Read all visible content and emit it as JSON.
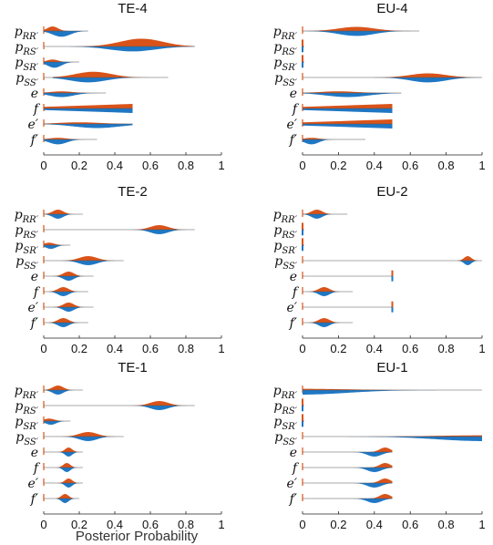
{
  "colors": {
    "orange": "#d95319",
    "blue": "#1f77c4",
    "axis": "#222222"
  },
  "x_axis_label": "Posterior Probability",
  "xticks": [
    0,
    0.2,
    0.4,
    0.6,
    0.8,
    1
  ],
  "rows": [
    {
      "base": "p",
      "sub": "RR′"
    },
    {
      "base": "p",
      "sub": "RS′"
    },
    {
      "base": "p",
      "sub": "SR′"
    },
    {
      "base": "p",
      "sub": "SS′"
    },
    {
      "base": "e",
      "sub": ""
    },
    {
      "base": "f",
      "sub": ""
    },
    {
      "base": "e′",
      "sub": ""
    },
    {
      "base": "f′",
      "sub": ""
    }
  ],
  "chart_data": [
    {
      "type": "violin",
      "title": "TE-4",
      "xlim": [
        0,
        1
      ],
      "series": [
        {
          "name": "",
          "color": "orange"
        },
        {
          "name": "",
          "color": "blue"
        }
      ],
      "distributions": [
        {
          "row": "p_RR'",
          "top": {
            "mode": 0.05,
            "sd": 0.03,
            "lo": 0.0,
            "hi": 0.2,
            "h": 0.55
          },
          "bottom": {
            "mode": 0.1,
            "sd": 0.05,
            "lo": 0.0,
            "hi": 0.25,
            "h": 0.7
          }
        },
        {
          "row": "p_RS'",
          "top": {
            "mode": 0.55,
            "sd": 0.12,
            "lo": 0.15,
            "hi": 0.85,
            "h": 0.95
          },
          "bottom": {
            "mode": 0.5,
            "sd": 0.13,
            "lo": 0.15,
            "hi": 0.85,
            "h": 0.6
          }
        },
        {
          "row": "p_SR'",
          "top": {
            "mode": 0.05,
            "sd": 0.03,
            "lo": 0.0,
            "hi": 0.2,
            "h": 0.3
          },
          "bottom": {
            "mode": 0.06,
            "sd": 0.04,
            "lo": 0.0,
            "hi": 0.2,
            "h": 0.7
          }
        },
        {
          "row": "p_SS'",
          "top": {
            "mode": 0.28,
            "sd": 0.1,
            "lo": 0.05,
            "hi": 0.7,
            "h": 0.7
          },
          "bottom": {
            "mode": 0.25,
            "sd": 0.1,
            "lo": 0.05,
            "hi": 0.65,
            "h": 0.6
          }
        },
        {
          "row": "e",
          "top": {
            "mode": 0.1,
            "sd": 0.06,
            "lo": 0.0,
            "hi": 0.35,
            "h": 0.2
          },
          "bottom": {
            "mode": 0.1,
            "sd": 0.07,
            "lo": 0.0,
            "hi": 0.35,
            "h": 0.5
          }
        },
        {
          "row": "f",
          "top": {
            "mode": 0.5,
            "sd": 0.01,
            "lo": 0.0,
            "hi": 0.5,
            "h": 0.55,
            "flat": true
          },
          "bottom": {
            "mode": 0.5,
            "sd": 0.01,
            "lo": 0.0,
            "hi": 0.5,
            "h": 0.55,
            "flat": true
          }
        },
        {
          "row": "e'",
          "top": {
            "mode": 0.2,
            "sd": 0.12,
            "lo": 0.0,
            "hi": 0.5,
            "h": 0.2
          },
          "bottom": {
            "mode": 0.3,
            "sd": 0.13,
            "lo": 0.0,
            "hi": 0.5,
            "h": 0.5
          }
        },
        {
          "row": "f'",
          "top": {
            "mode": 0.08,
            "sd": 0.05,
            "lo": 0.0,
            "hi": 0.3,
            "h": 0.2
          },
          "bottom": {
            "mode": 0.08,
            "sd": 0.05,
            "lo": 0.0,
            "hi": 0.3,
            "h": 0.6
          }
        }
      ]
    },
    {
      "type": "violin",
      "title": "EU-4",
      "xlim": [
        0,
        1
      ],
      "series": [
        {
          "name": "",
          "color": "orange"
        },
        {
          "name": "",
          "color": "blue"
        }
      ],
      "distributions": [
        {
          "row": "p_RR'",
          "top": {
            "mode": 0.3,
            "sd": 0.1,
            "lo": 0.0,
            "hi": 0.65,
            "h": 0.5
          },
          "bottom": {
            "mode": 0.3,
            "sd": 0.1,
            "lo": 0.0,
            "hi": 0.65,
            "h": 0.6
          }
        },
        {
          "row": "p_RS'",
          "top": {
            "mode": 0.0,
            "sd": 0.003,
            "lo": 0.0,
            "hi": 0.01,
            "h": 0.6,
            "spike": true
          },
          "bottom": {
            "mode": 0.0,
            "sd": 0.003,
            "lo": 0.0,
            "hi": 0.01,
            "h": 0.5,
            "spike": true
          }
        },
        {
          "row": "p_SR'",
          "top": {
            "mode": 0.0,
            "sd": 0.003,
            "lo": 0.0,
            "hi": 0.01,
            "h": 0.6,
            "spike": true
          },
          "bottom": {
            "mode": 0.0,
            "sd": 0.003,
            "lo": 0.0,
            "hi": 0.01,
            "h": 0.5,
            "spike": true
          }
        },
        {
          "row": "p_SS'",
          "top": {
            "mode": 0.7,
            "sd": 0.1,
            "lo": 0.35,
            "hi": 1.0,
            "h": 0.5
          },
          "bottom": {
            "mode": 0.7,
            "sd": 0.1,
            "lo": 0.35,
            "hi": 1.0,
            "h": 0.6
          }
        },
        {
          "row": "e",
          "top": {
            "mode": 0.2,
            "sd": 0.1,
            "lo": 0.0,
            "hi": 0.5,
            "h": 0.2
          },
          "bottom": {
            "mode": 0.25,
            "sd": 0.12,
            "lo": 0.0,
            "hi": 0.55,
            "h": 0.5
          }
        },
        {
          "row": "f",
          "top": {
            "mode": 0.5,
            "sd": 0.01,
            "lo": 0.0,
            "hi": 0.5,
            "h": 0.55,
            "flat": true
          },
          "bottom": {
            "mode": 0.5,
            "sd": 0.01,
            "lo": 0.0,
            "hi": 0.5,
            "h": 0.55,
            "flat": true
          }
        },
        {
          "row": "e'",
          "top": {
            "mode": 0.5,
            "sd": 0.01,
            "lo": 0.0,
            "hi": 0.5,
            "h": 0.55,
            "flat": true
          },
          "bottom": {
            "mode": 0.5,
            "sd": 0.01,
            "lo": 0.0,
            "hi": 0.5,
            "h": 0.55,
            "flat": true
          }
        },
        {
          "row": "f'",
          "top": {
            "mode": 0.05,
            "sd": 0.04,
            "lo": 0.0,
            "hi": 0.35,
            "h": 0.2
          },
          "bottom": {
            "mode": 0.05,
            "sd": 0.04,
            "lo": 0.0,
            "hi": 0.35,
            "h": 0.6
          }
        }
      ]
    },
    {
      "type": "violin",
      "title": "TE-2",
      "xlim": [
        0,
        1
      ],
      "series": [
        {
          "name": "",
          "color": "orange"
        },
        {
          "name": "",
          "color": "blue"
        }
      ],
      "distributions": [
        {
          "row": "p_RR'",
          "top": {
            "mode": 0.08,
            "sd": 0.03,
            "lo": 0.0,
            "hi": 0.22,
            "h": 0.55
          },
          "bottom": {
            "mode": 0.08,
            "sd": 0.03,
            "lo": 0.0,
            "hi": 0.22,
            "h": 0.55
          }
        },
        {
          "row": "p_RS'",
          "top": {
            "mode": 0.65,
            "sd": 0.05,
            "lo": 0.5,
            "hi": 0.85,
            "h": 0.55
          },
          "bottom": {
            "mode": 0.65,
            "sd": 0.05,
            "lo": 0.5,
            "hi": 0.85,
            "h": 0.55
          }
        },
        {
          "row": "p_SR'",
          "top": {
            "mode": 0.03,
            "sd": 0.03,
            "lo": 0.0,
            "hi": 0.15,
            "h": 0.3
          },
          "bottom": {
            "mode": 0.04,
            "sd": 0.03,
            "lo": 0.0,
            "hi": 0.15,
            "h": 0.45
          }
        },
        {
          "row": "p_SS'",
          "top": {
            "mode": 0.25,
            "sd": 0.05,
            "lo": 0.1,
            "hi": 0.45,
            "h": 0.55
          },
          "bottom": {
            "mode": 0.25,
            "sd": 0.05,
            "lo": 0.1,
            "hi": 0.45,
            "h": 0.55
          }
        },
        {
          "row": "e",
          "top": {
            "mode": 0.14,
            "sd": 0.03,
            "lo": 0.05,
            "hi": 0.28,
            "h": 0.55
          },
          "bottom": {
            "mode": 0.14,
            "sd": 0.03,
            "lo": 0.05,
            "hi": 0.28,
            "h": 0.55
          }
        },
        {
          "row": "f",
          "top": {
            "mode": 0.11,
            "sd": 0.03,
            "lo": 0.03,
            "hi": 0.25,
            "h": 0.55
          },
          "bottom": {
            "mode": 0.11,
            "sd": 0.03,
            "lo": 0.03,
            "hi": 0.25,
            "h": 0.55
          }
        },
        {
          "row": "e'",
          "top": {
            "mode": 0.14,
            "sd": 0.03,
            "lo": 0.05,
            "hi": 0.28,
            "h": 0.55
          },
          "bottom": {
            "mode": 0.14,
            "sd": 0.03,
            "lo": 0.05,
            "hi": 0.28,
            "h": 0.55
          }
        },
        {
          "row": "f'",
          "top": {
            "mode": 0.11,
            "sd": 0.03,
            "lo": 0.03,
            "hi": 0.25,
            "h": 0.55
          },
          "bottom": {
            "mode": 0.11,
            "sd": 0.03,
            "lo": 0.03,
            "hi": 0.25,
            "h": 0.55
          }
        }
      ]
    },
    {
      "type": "violin",
      "title": "EU-2",
      "xlim": [
        0,
        1
      ],
      "series": [
        {
          "name": "",
          "color": "orange"
        },
        {
          "name": "",
          "color": "blue"
        }
      ],
      "distributions": [
        {
          "row": "p_RR'",
          "top": {
            "mode": 0.08,
            "sd": 0.03,
            "lo": 0.0,
            "hi": 0.25,
            "h": 0.55
          },
          "bottom": {
            "mode": 0.08,
            "sd": 0.03,
            "lo": 0.0,
            "hi": 0.25,
            "h": 0.55
          }
        },
        {
          "row": "p_RS'",
          "top": {
            "mode": 0.0,
            "sd": 0.003,
            "lo": 0.0,
            "hi": 0.01,
            "h": 0.6,
            "spike": true
          },
          "bottom": {
            "mode": 0.0,
            "sd": 0.003,
            "lo": 0.0,
            "hi": 0.01,
            "h": 0.5,
            "spike": true
          }
        },
        {
          "row": "p_SR'",
          "top": {
            "mode": 0.0,
            "sd": 0.003,
            "lo": 0.0,
            "hi": 0.01,
            "h": 0.6,
            "spike": true
          },
          "bottom": {
            "mode": 0.0,
            "sd": 0.003,
            "lo": 0.0,
            "hi": 0.01,
            "h": 0.5,
            "spike": true
          }
        },
        {
          "row": "p_SS'",
          "top": {
            "mode": 0.92,
            "sd": 0.02,
            "lo": 0.8,
            "hi": 1.0,
            "h": 0.55
          },
          "bottom": {
            "mode": 0.92,
            "sd": 0.02,
            "lo": 0.8,
            "hi": 1.0,
            "h": 0.55
          }
        },
        {
          "row": "e",
          "top": {
            "mode": 0.5,
            "sd": 0.003,
            "lo": 0.49,
            "hi": 0.5,
            "h": 0.5,
            "spike": true
          },
          "bottom": {
            "mode": 0.5,
            "sd": 0.003,
            "lo": 0.49,
            "hi": 0.5,
            "h": 0.45,
            "spike": true
          }
        },
        {
          "row": "f",
          "top": {
            "mode": 0.12,
            "sd": 0.03,
            "lo": 0.03,
            "hi": 0.28,
            "h": 0.55
          },
          "bottom": {
            "mode": 0.12,
            "sd": 0.03,
            "lo": 0.03,
            "hi": 0.28,
            "h": 0.55
          }
        },
        {
          "row": "e'",
          "top": {
            "mode": 0.5,
            "sd": 0.003,
            "lo": 0.49,
            "hi": 0.5,
            "h": 0.5,
            "spike": true
          },
          "bottom": {
            "mode": 0.5,
            "sd": 0.003,
            "lo": 0.49,
            "hi": 0.5,
            "h": 0.45,
            "spike": true
          }
        },
        {
          "row": "f'",
          "top": {
            "mode": 0.12,
            "sd": 0.03,
            "lo": 0.03,
            "hi": 0.28,
            "h": 0.55
          },
          "bottom": {
            "mode": 0.12,
            "sd": 0.03,
            "lo": 0.03,
            "hi": 0.28,
            "h": 0.55
          }
        }
      ]
    },
    {
      "type": "violin",
      "title": "TE-1",
      "xlim": [
        0,
        1
      ],
      "series": [
        {
          "name": "",
          "color": "orange"
        },
        {
          "name": "",
          "color": "blue"
        }
      ],
      "distributions": [
        {
          "row": "p_RR'",
          "top": {
            "mode": 0.08,
            "sd": 0.03,
            "lo": 0.0,
            "hi": 0.22,
            "h": 0.55
          },
          "bottom": {
            "mode": 0.08,
            "sd": 0.03,
            "lo": 0.0,
            "hi": 0.22,
            "h": 0.55
          }
        },
        {
          "row": "p_RS'",
          "top": {
            "mode": 0.65,
            "sd": 0.05,
            "lo": 0.5,
            "hi": 0.85,
            "h": 0.55
          },
          "bottom": {
            "mode": 0.65,
            "sd": 0.05,
            "lo": 0.5,
            "hi": 0.85,
            "h": 0.55
          }
        },
        {
          "row": "p_SR'",
          "top": {
            "mode": 0.03,
            "sd": 0.03,
            "lo": 0.0,
            "hi": 0.15,
            "h": 0.3
          },
          "bottom": {
            "mode": 0.04,
            "sd": 0.03,
            "lo": 0.0,
            "hi": 0.15,
            "h": 0.45
          }
        },
        {
          "row": "p_SS'",
          "top": {
            "mode": 0.25,
            "sd": 0.05,
            "lo": 0.1,
            "hi": 0.45,
            "h": 0.55
          },
          "bottom": {
            "mode": 0.25,
            "sd": 0.05,
            "lo": 0.1,
            "hi": 0.45,
            "h": 0.55
          }
        },
        {
          "row": "e",
          "top": {
            "mode": 0.14,
            "sd": 0.02,
            "lo": 0.08,
            "hi": 0.22,
            "h": 0.55
          },
          "bottom": {
            "mode": 0.14,
            "sd": 0.02,
            "lo": 0.08,
            "hi": 0.22,
            "h": 0.55
          }
        },
        {
          "row": "f",
          "top": {
            "mode": 0.13,
            "sd": 0.02,
            "lo": 0.07,
            "hi": 0.22,
            "h": 0.55
          },
          "bottom": {
            "mode": 0.13,
            "sd": 0.02,
            "lo": 0.07,
            "hi": 0.22,
            "h": 0.55
          }
        },
        {
          "row": "e'",
          "top": {
            "mode": 0.14,
            "sd": 0.02,
            "lo": 0.08,
            "hi": 0.22,
            "h": 0.55
          },
          "bottom": {
            "mode": 0.14,
            "sd": 0.02,
            "lo": 0.08,
            "hi": 0.22,
            "h": 0.55
          }
        },
        {
          "row": "f'",
          "top": {
            "mode": 0.12,
            "sd": 0.02,
            "lo": 0.07,
            "hi": 0.2,
            "h": 0.55
          },
          "bottom": {
            "mode": 0.12,
            "sd": 0.02,
            "lo": 0.07,
            "hi": 0.2,
            "h": 0.55
          }
        }
      ]
    },
    {
      "type": "violin",
      "title": "EU-1",
      "xlim": [
        0,
        1
      ],
      "series": [
        {
          "name": "",
          "color": "orange"
        },
        {
          "name": "",
          "color": "blue"
        }
      ],
      "distributions": [
        {
          "row": "p_RR'",
          "top": {
            "mode": 0.0,
            "sd": 0.25,
            "lo": 0.0,
            "hi": 1.0,
            "h": 0.15
          },
          "bottom": {
            "mode": 0.0,
            "sd": 0.25,
            "lo": 0.0,
            "hi": 1.0,
            "h": 0.55
          }
        },
        {
          "row": "p_RS'",
          "top": {
            "mode": 0.0,
            "sd": 0.003,
            "lo": 0.0,
            "hi": 0.01,
            "h": 0.6,
            "spike": true
          },
          "bottom": {
            "mode": 0.0,
            "sd": 0.003,
            "lo": 0.0,
            "hi": 0.01,
            "h": 0.5,
            "spike": true
          }
        },
        {
          "row": "p_SR'",
          "top": {
            "mode": 0.0,
            "sd": 0.003,
            "lo": 0.0,
            "hi": 0.01,
            "h": 0.6,
            "spike": true
          },
          "bottom": {
            "mode": 0.0,
            "sd": 0.003,
            "lo": 0.0,
            "hi": 0.01,
            "h": 0.5,
            "spike": true
          }
        },
        {
          "row": "p_SS'",
          "top": {
            "mode": 1.0,
            "sd": 0.25,
            "lo": 0.0,
            "hi": 1.0,
            "h": 0.15
          },
          "bottom": {
            "mode": 1.0,
            "sd": 0.25,
            "lo": 0.0,
            "hi": 1.0,
            "h": 0.55
          }
        },
        {
          "row": "e",
          "top": {
            "mode": 0.46,
            "sd": 0.03,
            "lo": 0.3,
            "hi": 0.5,
            "h": 0.55
          },
          "bottom": {
            "mode": 0.4,
            "sd": 0.04,
            "lo": 0.28,
            "hi": 0.5,
            "h": 0.55
          }
        },
        {
          "row": "f",
          "top": {
            "mode": 0.46,
            "sd": 0.03,
            "lo": 0.3,
            "hi": 0.5,
            "h": 0.55
          },
          "bottom": {
            "mode": 0.4,
            "sd": 0.04,
            "lo": 0.28,
            "hi": 0.5,
            "h": 0.55
          }
        },
        {
          "row": "e'",
          "top": {
            "mode": 0.46,
            "sd": 0.03,
            "lo": 0.3,
            "hi": 0.5,
            "h": 0.55
          },
          "bottom": {
            "mode": 0.4,
            "sd": 0.04,
            "lo": 0.28,
            "hi": 0.5,
            "h": 0.55
          }
        },
        {
          "row": "f'",
          "top": {
            "mode": 0.46,
            "sd": 0.03,
            "lo": 0.3,
            "hi": 0.5,
            "h": 0.55
          },
          "bottom": {
            "mode": 0.4,
            "sd": 0.04,
            "lo": 0.28,
            "hi": 0.5,
            "h": 0.55
          }
        }
      ]
    }
  ]
}
